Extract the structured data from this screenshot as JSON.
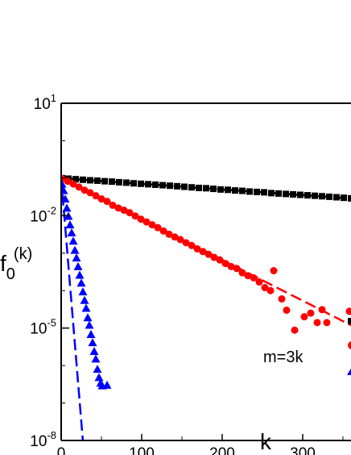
{
  "chart_data": {
    "type": "scatter",
    "y_scale": "log",
    "xlim": [
      0,
      360
    ],
    "ylim": [
      1e-08,
      10
    ],
    "x_ticks": [
      {
        "value": 0,
        "label": "0"
      },
      {
        "value": 100,
        "label": "100"
      },
      {
        "value": 200,
        "label": "200"
      },
      {
        "value": 300,
        "label": "300"
      }
    ],
    "y_ticks": [
      {
        "value": 1e-08,
        "base": "10",
        "exp": "-8"
      },
      {
        "value": 1e-05,
        "base": "10",
        "exp": "-5"
      },
      {
        "value": 0.01,
        "base": "10",
        "exp": "-2"
      },
      {
        "value": 10,
        "base": "10",
        "exp": "1"
      }
    ],
    "xlabel": "k",
    "ylabel": {
      "main": "f",
      "sub": "0",
      "sup": "(k)"
    },
    "annotation": "m=3k",
    "grid": false,
    "legend": "right (cropped)",
    "series": [
      {
        "color": "#000000",
        "marker": "square",
        "fit": {
          "y0": 0.1,
          "slope": -0.0015
        },
        "points": [
          [
            1,
            0.1
          ],
          [
            9,
            0.097
          ],
          [
            18,
            0.094
          ],
          [
            27,
            0.091
          ],
          [
            36,
            0.088
          ],
          [
            45,
            0.086
          ],
          [
            54,
            0.083
          ],
          [
            63,
            0.081
          ],
          [
            72,
            0.078
          ],
          [
            81,
            0.076
          ],
          [
            90,
            0.073
          ],
          [
            99,
            0.071
          ],
          [
            108,
            0.069
          ],
          [
            117,
            0.067
          ],
          [
            126,
            0.065
          ],
          [
            135,
            0.063
          ],
          [
            144,
            0.061
          ],
          [
            153,
            0.059
          ],
          [
            162,
            0.057
          ],
          [
            171,
            0.055
          ],
          [
            180,
            0.054
          ],
          [
            189,
            0.052
          ],
          [
            198,
            0.05
          ],
          [
            207,
            0.049
          ],
          [
            216,
            0.047
          ],
          [
            225,
            0.046
          ],
          [
            234,
            0.044
          ],
          [
            243,
            0.043
          ],
          [
            252,
            0.042
          ],
          [
            261,
            0.04
          ],
          [
            270,
            0.039
          ],
          [
            279,
            0.038
          ],
          [
            288,
            0.037
          ],
          [
            297,
            0.036
          ],
          [
            306,
            0.035
          ],
          [
            315,
            0.034
          ],
          [
            324,
            0.033
          ],
          [
            333,
            0.032
          ],
          [
            342,
            0.031
          ],
          [
            351,
            0.03
          ],
          [
            360,
            0.029
          ]
        ]
      },
      {
        "color": "#ff0000",
        "marker": "circle",
        "fit": {
          "y0": 0.1,
          "slope": -0.0109
        },
        "points": [
          [
            1,
            0.097
          ],
          [
            8,
            0.083
          ],
          [
            15,
            0.07
          ],
          [
            22,
            0.058
          ],
          [
            29,
            0.048
          ],
          [
            36,
            0.041
          ],
          [
            43,
            0.034
          ],
          [
            50,
            0.028
          ],
          [
            57,
            0.024
          ],
          [
            64,
            0.019
          ],
          [
            71,
            0.016
          ],
          [
            78,
            0.014
          ],
          [
            85,
            0.012
          ],
          [
            92,
            0.0098
          ],
          [
            99,
            0.0081
          ],
          [
            106,
            0.0068
          ],
          [
            113,
            0.0057
          ],
          [
            120,
            0.0048
          ],
          [
            127,
            0.0039
          ],
          [
            134,
            0.0032
          ],
          [
            141,
            0.0027
          ],
          [
            148,
            0.0023
          ],
          [
            155,
            0.0019
          ],
          [
            162,
            0.0016
          ],
          [
            169,
            0.0013
          ],
          [
            176,
            0.0011
          ],
          [
            183,
            0.00093
          ],
          [
            190,
            0.00077
          ],
          [
            197,
            0.00066
          ],
          [
            204,
            0.00053
          ],
          [
            211,
            0.00044
          ],
          [
            218,
            0.00039
          ],
          [
            225,
            0.0003
          ],
          [
            232,
            0.00025
          ],
          [
            239,
            0.00022
          ],
          [
            246,
            0.00017
          ],
          [
            253,
            0.00012
          ],
          [
            260,
            0.0001
          ],
          [
            264,
            0.00034
          ],
          [
            274,
            6e-05
          ],
          [
            280,
            3e-05
          ],
          [
            290,
            8.8e-06
          ],
          [
            302,
            2e-05
          ],
          [
            310,
            2.5e-05
          ],
          [
            318,
            1.4e-05
          ],
          [
            324,
            3.1e-05
          ],
          [
            330,
            1.4e-05
          ],
          [
            358,
            2.8e-05
          ]
        ]
      },
      {
        "color": "#0000ff",
        "marker": "triangle",
        "fit": {
          "y0": 0.1,
          "slope": -0.26
        },
        "points": [
          [
            1,
            0.07
          ],
          [
            3,
            0.047
          ],
          [
            5,
            0.028
          ],
          [
            7,
            0.016
          ],
          [
            9,
            0.0097
          ],
          [
            11,
            0.0057
          ],
          [
            13,
            0.0035
          ],
          [
            15,
            0.0021
          ],
          [
            17,
            0.0012
          ],
          [
            19,
            0.00075
          ],
          [
            21,
            0.00044
          ],
          [
            23,
            0.00026
          ],
          [
            25,
            0.00016
          ],
          [
            27,
            9.3e-05
          ],
          [
            29,
            5.5e-05
          ],
          [
            31,
            3.4e-05
          ],
          [
            33,
            1.9e-05
          ],
          [
            35,
            1.2e-05
          ],
          [
            37,
            6.8e-06
          ],
          [
            39,
            4.1e-06
          ],
          [
            41,
            2.4e-06
          ],
          [
            43,
            1.5e-06
          ],
          [
            45,
            8e-07
          ],
          [
            47,
            4.8e-07
          ],
          [
            49,
            3.4e-07
          ],
          [
            51,
            2.9e-07
          ],
          [
            57,
            3e-07
          ]
        ]
      }
    ]
  }
}
